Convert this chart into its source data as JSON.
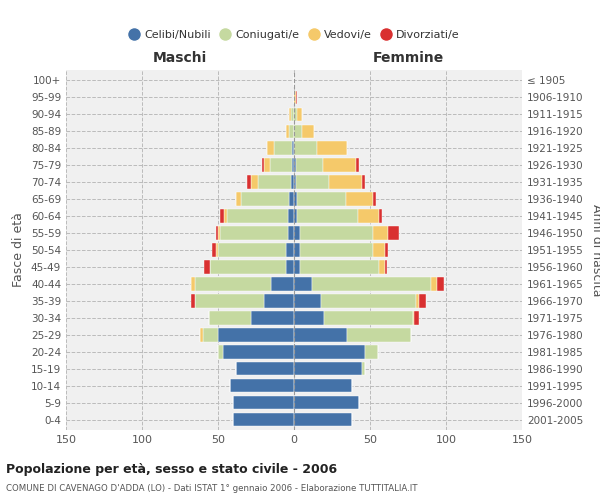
{
  "age_groups": [
    "0-4",
    "5-9",
    "10-14",
    "15-19",
    "20-24",
    "25-29",
    "30-34",
    "35-39",
    "40-44",
    "45-49",
    "50-54",
    "55-59",
    "60-64",
    "65-69",
    "70-74",
    "75-79",
    "80-84",
    "85-89",
    "90-94",
    "95-99",
    "100+"
  ],
  "birth_years": [
    "2001-2005",
    "1996-2000",
    "1991-1995",
    "1986-1990",
    "1981-1985",
    "1976-1980",
    "1971-1975",
    "1966-1970",
    "1961-1965",
    "1956-1960",
    "1951-1955",
    "1946-1950",
    "1941-1945",
    "1936-1940",
    "1931-1935",
    "1926-1930",
    "1921-1925",
    "1916-1920",
    "1911-1915",
    "1906-1910",
    "≤ 1905"
  ],
  "male": {
    "celibi": [
      40,
      40,
      42,
      38,
      47,
      50,
      28,
      20,
      15,
      5,
      5,
      4,
      4,
      3,
      2,
      1,
      1,
      0,
      0,
      0,
      0
    ],
    "coniugati": [
      0,
      0,
      0,
      0,
      3,
      10,
      28,
      45,
      50,
      50,
      45,
      45,
      40,
      32,
      22,
      15,
      12,
      3,
      2,
      0,
      0
    ],
    "vedovi": [
      0,
      0,
      0,
      0,
      0,
      2,
      0,
      0,
      3,
      0,
      1,
      1,
      2,
      3,
      4,
      4,
      5,
      2,
      1,
      0,
      0
    ],
    "divorziati": [
      0,
      0,
      0,
      0,
      0,
      0,
      0,
      3,
      0,
      4,
      3,
      1,
      3,
      0,
      3,
      1,
      0,
      0,
      0,
      0,
      0
    ]
  },
  "female": {
    "nubili": [
      38,
      43,
      38,
      45,
      47,
      35,
      20,
      18,
      12,
      4,
      4,
      4,
      2,
      2,
      1,
      1,
      0,
      0,
      0,
      0,
      0
    ],
    "coniugate": [
      0,
      0,
      0,
      2,
      8,
      42,
      58,
      62,
      78,
      52,
      48,
      48,
      40,
      32,
      22,
      18,
      15,
      5,
      2,
      0,
      0
    ],
    "vedove": [
      0,
      0,
      0,
      0,
      0,
      0,
      1,
      2,
      4,
      4,
      8,
      10,
      14,
      18,
      22,
      22,
      20,
      8,
      3,
      1,
      0
    ],
    "divorziate": [
      0,
      0,
      0,
      0,
      0,
      0,
      3,
      5,
      5,
      1,
      2,
      7,
      2,
      2,
      2,
      2,
      0,
      0,
      0,
      1,
      0
    ]
  },
  "colors": {
    "celibi": "#4472a8",
    "coniugati": "#c5d9a0",
    "vedovi": "#f5c96a",
    "divorziati": "#d93030"
  },
  "title": "Popolazione per età, sesso e stato civile - 2006",
  "subtitle": "COMUNE DI CAVENAGO D'ADDA (LO) - Dati ISTAT 1° gennaio 2006 - Elaborazione TUTTITALIA.IT",
  "xlabel_left": "Maschi",
  "xlabel_right": "Femmine",
  "ylabel_left": "Fasce di età",
  "ylabel_right": "Anni di nascita",
  "xlim": 150,
  "bg_color": "#f0f0f0",
  "legend_labels": [
    "Celibi/Nubili",
    "Coniugati/e",
    "Vedovi/e",
    "Divorziati/e"
  ]
}
